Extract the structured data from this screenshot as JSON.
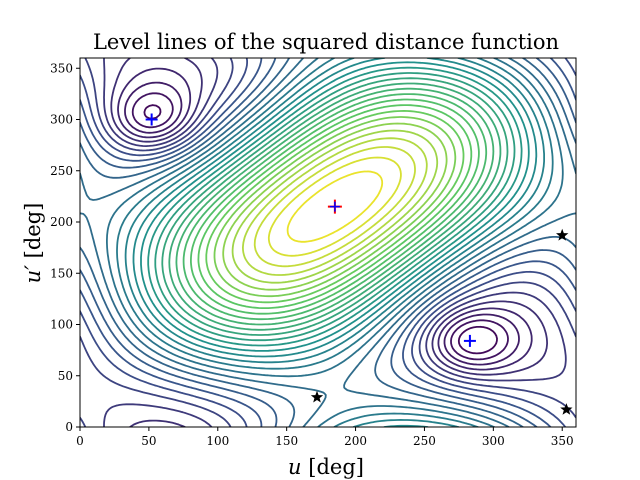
{
  "chart_data": {
    "type": "contour",
    "title": "Level lines of the squared distance function",
    "xlabel_var": "u",
    "xlabel_unit": " [deg]",
    "ylabel_var": "u′",
    "ylabel_unit": " [deg]",
    "xlim": [
      0,
      360
    ],
    "ylim": [
      0,
      360
    ],
    "xticks": [
      "0",
      "50",
      "100",
      "150",
      "200",
      "250",
      "300",
      "350"
    ],
    "yticks": [
      "0",
      "50",
      "100",
      "150",
      "200",
      "250",
      "300",
      "350"
    ],
    "colormap": [
      "#440154",
      "#3b528b",
      "#21918c",
      "#5ec962",
      "#fde725"
    ],
    "grid": false,
    "maximum": {
      "x": 185,
      "y": 215,
      "marker": "plus",
      "colors": [
        "#ff0000",
        "#0000ff"
      ]
    },
    "minima": [
      {
        "x": 52,
        "y": 300,
        "marker": "plus",
        "color": "#0000ff"
      },
      {
        "x": 283,
        "y": 84,
        "marker": "plus",
        "color": "#0000ff"
      }
    ],
    "saddles": [
      {
        "x": 172,
        "y": 29,
        "marker": "star",
        "color": "#000000"
      },
      {
        "x": 350,
        "y": 187,
        "marker": "star",
        "color": "#000000"
      },
      {
        "x": 353,
        "y": 17,
        "marker": "star",
        "color": "#000000"
      }
    ]
  }
}
